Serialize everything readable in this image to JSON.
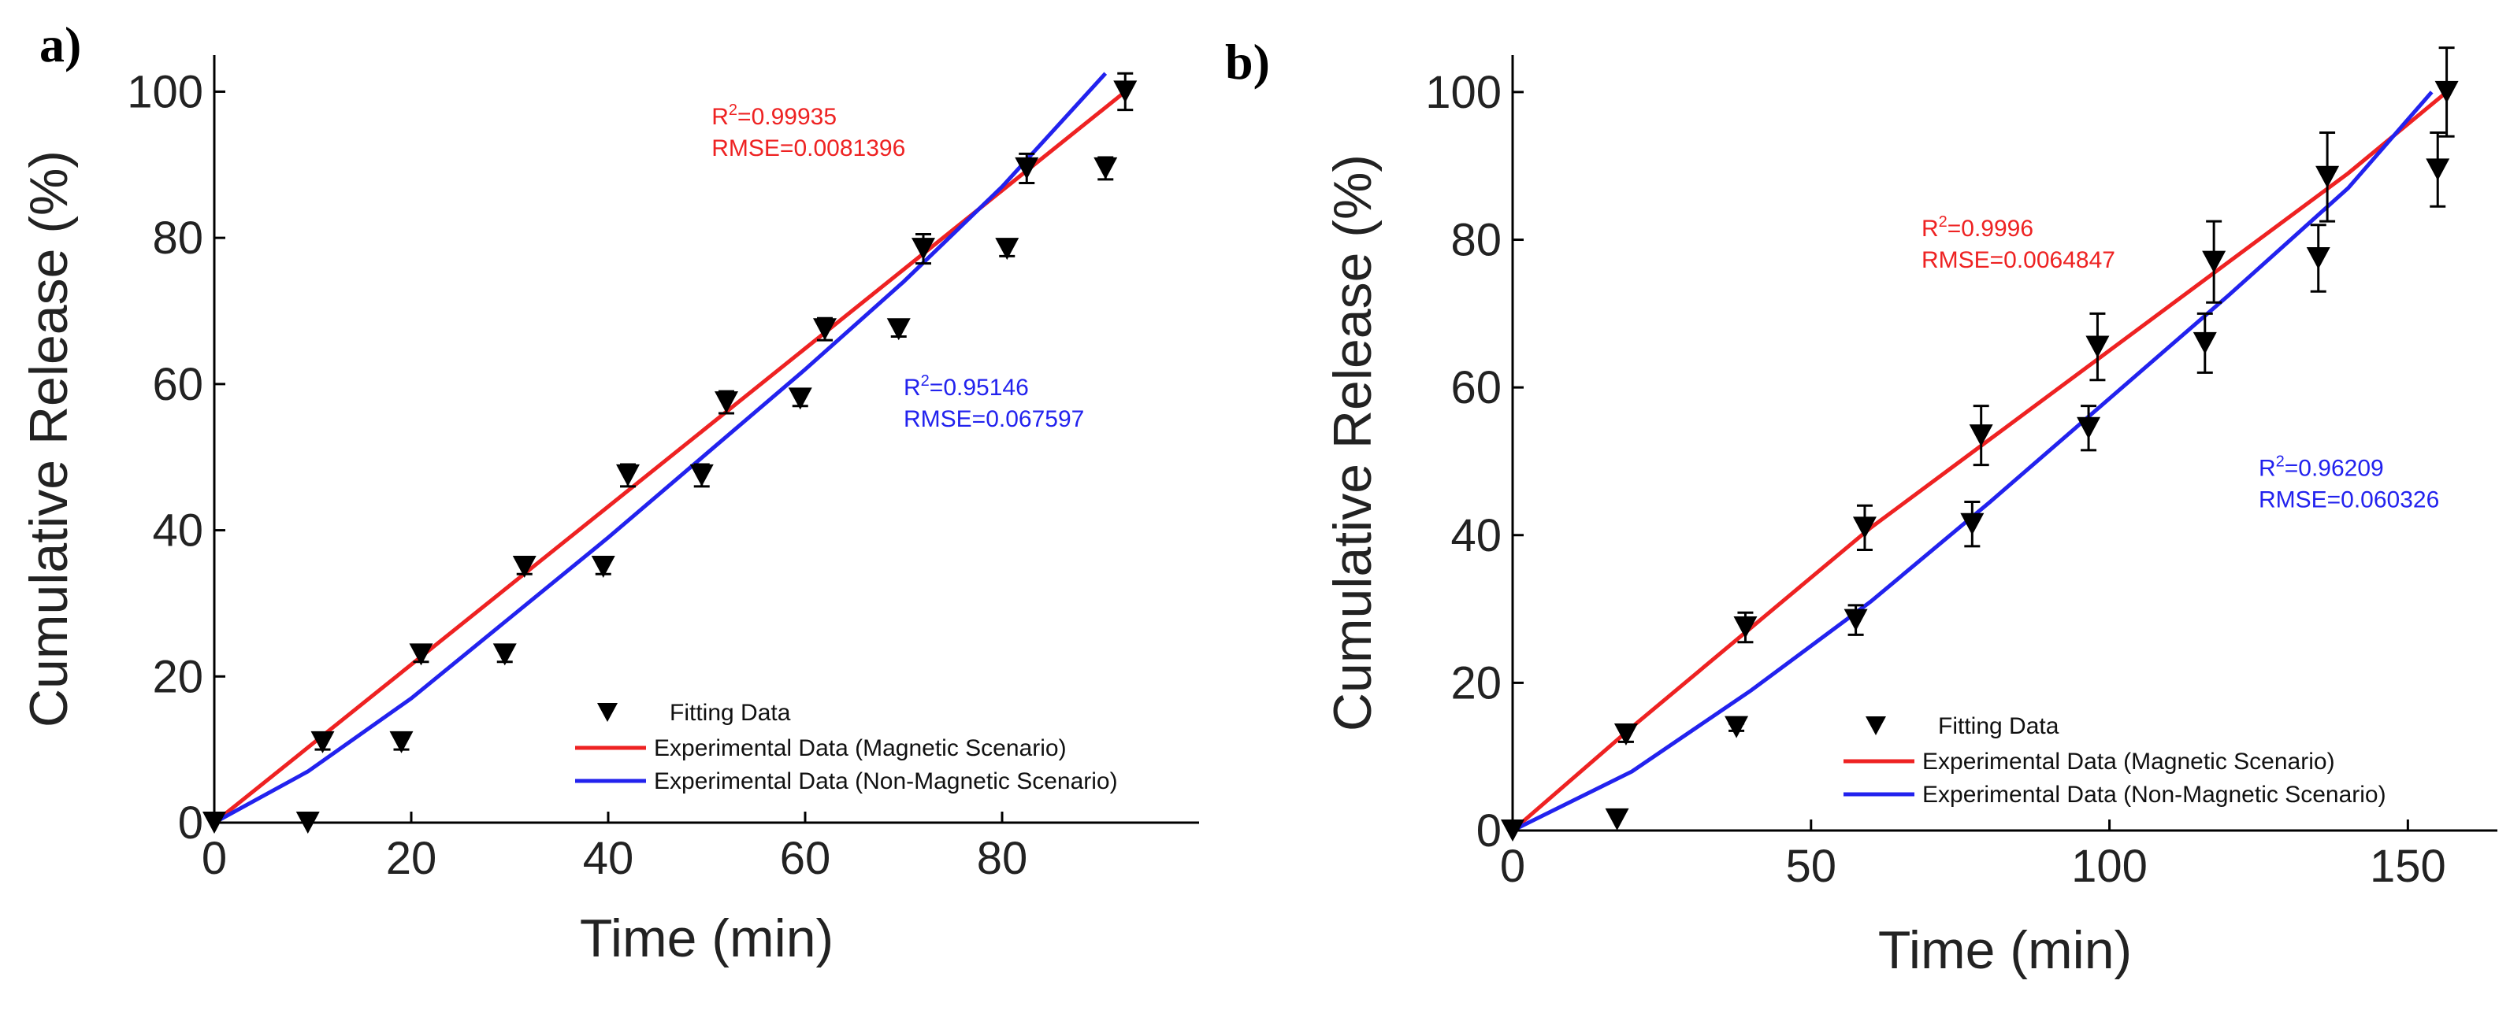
{
  "chart_data": [
    {
      "type": "scatter",
      "panel_label": "a)",
      "xlabel": "Time (min)",
      "ylabel": "Cumulative Release (%)",
      "xlim": [
        0,
        100
      ],
      "ylim": [
        0,
        105
      ],
      "xticks": [
        0,
        20,
        40,
        60,
        80
      ],
      "yticks": [
        0,
        20,
        40,
        60,
        80,
        100
      ],
      "fitting_data": {
        "name": "Fitting Data",
        "x": [
          0,
          9.5,
          11,
          19,
          21,
          29.5,
          31.5,
          39.5,
          42,
          49.5,
          52,
          59.5,
          62,
          69.5,
          72,
          80.5,
          82.5,
          90.5,
          92.5
        ],
        "y": [
          0,
          0,
          11,
          11,
          23,
          23,
          35,
          35,
          47.5,
          47.5,
          57.5,
          58,
          67.5,
          67.5,
          78.5,
          78.5,
          89.5,
          89.5,
          100
        ],
        "err": [
          0,
          0,
          1,
          1,
          1,
          1,
          1,
          1,
          1.5,
          1.5,
          1.5,
          1,
          1.5,
          1,
          2,
          1,
          2,
          1.5,
          2.5
        ]
      },
      "series": [
        {
          "name": "Experimental Data (Magnetic Scenario)",
          "color": "#ee2222",
          "x": [
            0,
            92.5
          ],
          "y": [
            0,
            100
          ]
        },
        {
          "name": "Experimental Data (Non-Magnetic Scenario)",
          "color": "#2222ee",
          "x": [
            0,
            9.5,
            20,
            30,
            40,
            50,
            60,
            70,
            80,
            90.5
          ],
          "y": [
            0,
            7,
            17,
            28,
            39,
            50.5,
            62,
            74,
            87,
            102.5
          ]
        }
      ],
      "annotations": [
        {
          "color": "#ee2222",
          "r2_value": "=0.99935",
          "rmse": "RMSE=0.0081396",
          "x": 50.5,
          "y": 95.5
        },
        {
          "color": "#2222ee",
          "r2_value": "=0.95146",
          "rmse": "RMSE=0.067597",
          "x": 70,
          "y": 58.5
        }
      ],
      "legend_position": "lower-right"
    },
    {
      "type": "scatter",
      "panel_label": "b)",
      "xlabel": "Time (min)",
      "ylabel": "Cumulative Release (%)",
      "xlim": [
        0,
        165
      ],
      "ylim": [
        0,
        105
      ],
      "xticks": [
        0,
        50,
        100,
        150
      ],
      "yticks": [
        0,
        20,
        40,
        60,
        80,
        100
      ],
      "fitting_data": {
        "name": "Fitting Data",
        "x": [
          0,
          17.5,
          19,
          37.5,
          39,
          57.5,
          59,
          77,
          78.5,
          96.5,
          98,
          116,
          117.5,
          135,
          136.5,
          155,
          156.5
        ],
        "y": [
          0,
          1.5,
          13,
          14,
          27.5,
          28.5,
          41,
          41.5,
          53.5,
          54.5,
          65.5,
          66,
          77,
          77.5,
          88.5,
          89.5,
          100
        ],
        "err": [
          0,
          0,
          1,
          0.5,
          2,
          2,
          3,
          3,
          4,
          3,
          4.5,
          4,
          5.5,
          4.5,
          6,
          5,
          6
        ]
      },
      "series": [
        {
          "name": "Experimental Data (Magnetic Scenario)",
          "color": "#ee2222",
          "x": [
            0,
            20,
            40,
            60,
            80,
            100,
            120,
            140,
            156.5
          ],
          "y": [
            0,
            14,
            27.5,
            41,
            53,
            65,
            77,
            89,
            100
          ]
        },
        {
          "name": "Experimental Data (Non-Magnetic Scenario)",
          "color": "#2222ee",
          "x": [
            0,
            20,
            40,
            60,
            80,
            100,
            120,
            140,
            154
          ],
          "y": [
            0,
            8,
            19,
            31,
            44.5,
            58.5,
            72.5,
            87,
            100
          ]
        }
      ],
      "annotations": [
        {
          "color": "#ee2222",
          "r2_value": "=0.9996",
          "rmse": "RMSE=0.0064847",
          "x": 68.5,
          "y": 80.5
        },
        {
          "color": "#2222ee",
          "r2_value": "=0.96209",
          "rmse": "RMSE=0.060326",
          "x": 125,
          "y": 48
        }
      ],
      "legend_position": "lower-right"
    }
  ]
}
